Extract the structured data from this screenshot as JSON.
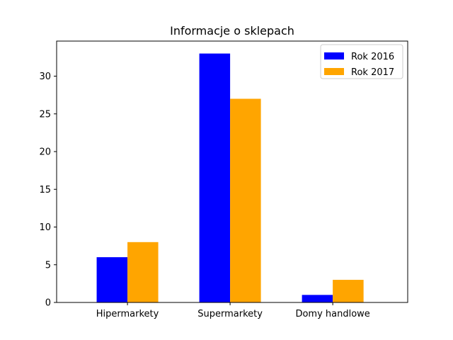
{
  "chart_data": {
    "type": "bar",
    "title": "Informacje o sklepach",
    "xlabel": "",
    "ylabel": "",
    "categories": [
      "Hipermarkety",
      "Supermarkety",
      "Domy handlowe"
    ],
    "series": [
      {
        "name": "Rok 2016",
        "values": [
          6,
          33,
          1
        ],
        "color": "#0000ff"
      },
      {
        "name": "Rok 2017",
        "values": [
          8,
          27,
          3
        ],
        "color": "#ffa500"
      }
    ],
    "ylim": [
      0,
      34.65
    ],
    "yticks": [
      0,
      5,
      10,
      15,
      20,
      25,
      30
    ],
    "grid": false,
    "legend_position": "top-right"
  }
}
